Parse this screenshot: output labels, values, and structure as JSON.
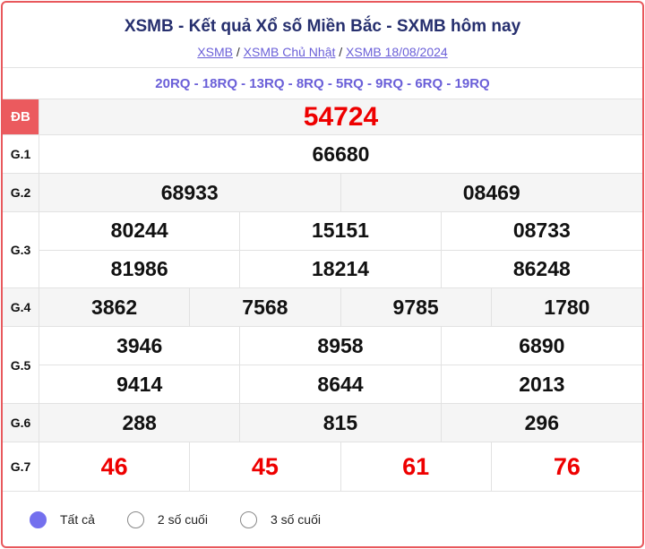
{
  "header": {
    "title": "XSMB - Kết quả Xổ số Miền Bắc - SXMB hôm nay",
    "breadcrumbs": [
      "XSMB",
      "XSMB Chủ Nhật",
      "XSMB 18/08/2024"
    ],
    "separator": "/"
  },
  "codes": "20RQ - 18RQ - 13RQ - 8RQ - 5RQ - 9RQ - 6RQ - 19RQ",
  "prizes": [
    {
      "label": "ĐB",
      "numbers": [
        "54724"
      ]
    },
    {
      "label": "G.1",
      "numbers": [
        "66680"
      ]
    },
    {
      "label": "G.2",
      "numbers": [
        "68933",
        "08469"
      ]
    },
    {
      "label": "G.3",
      "numbers": [
        "80244",
        "15151",
        "08733",
        "81986",
        "18214",
        "86248"
      ]
    },
    {
      "label": "G.4",
      "numbers": [
        "3862",
        "7568",
        "9785",
        "1780"
      ]
    },
    {
      "label": "G.5",
      "numbers": [
        "3946",
        "8958",
        "6890",
        "9414",
        "8644",
        "2013"
      ]
    },
    {
      "label": "G.6",
      "numbers": [
        "288",
        "815",
        "296"
      ]
    },
    {
      "label": "G.7",
      "numbers": [
        "46",
        "45",
        "61",
        "76"
      ]
    }
  ],
  "filter": {
    "options": [
      "Tất cả",
      "2 số cuối",
      "3 số cuối"
    ],
    "selected": 0
  },
  "colors": {
    "accent": "#6a5fd8",
    "highlight": "#ee0000",
    "title": "#262f6e",
    "border": "#e8585c"
  }
}
